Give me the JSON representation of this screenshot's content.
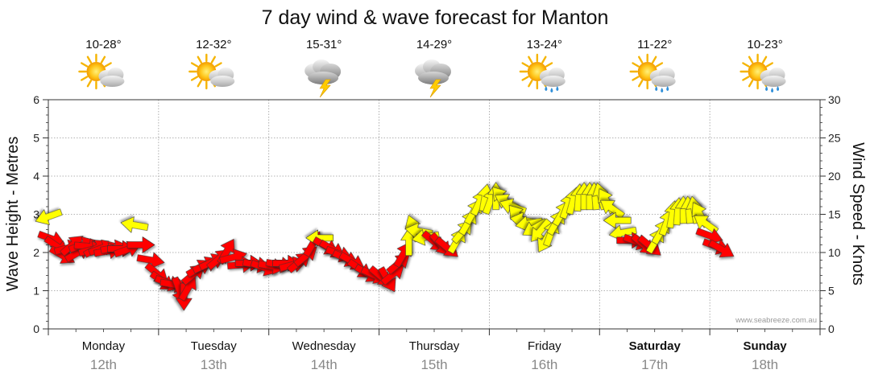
{
  "chart_data": {
    "type": "line",
    "title": "7 day wind & wave forecast for Manton",
    "y_left_label": "Wave Height - Metres",
    "y_right_label": "Wind Speed - Knots",
    "y_left_range": [
      0,
      6
    ],
    "y_right_range": [
      0,
      30
    ],
    "y_left_ticks": [
      "0",
      "1",
      "2",
      "3",
      "4",
      "5",
      "6"
    ],
    "y_right_ticks": [
      "0",
      "5",
      "10",
      "15",
      "20",
      "25",
      "30"
    ],
    "watermark": "www.seabreeze.com.au",
    "grid": true,
    "days": [
      {
        "name": "Monday",
        "date": "12th",
        "temp": "10-28°",
        "icon": "sun-cloud-icon",
        "bold": false
      },
      {
        "name": "Tuesday",
        "date": "13th",
        "temp": "12-32°",
        "icon": "sun-cloud-icon",
        "bold": false
      },
      {
        "name": "Wednesday",
        "date": "14th",
        "temp": "15-31°",
        "icon": "storm-cloud-icon",
        "bold": false
      },
      {
        "name": "Thursday",
        "date": "15th",
        "temp": "14-29°",
        "icon": "storm-cloud-icon",
        "bold": false
      },
      {
        "name": "Friday",
        "date": "16th",
        "temp": "13-24°",
        "icon": "sun-rain-icon",
        "bold": false
      },
      {
        "name": "Saturday",
        "date": "17th",
        "temp": "11-22°",
        "icon": "sun-rain-icon",
        "bold": true
      },
      {
        "name": "Sunday",
        "date": "18th",
        "temp": "10-23°",
        "icon": "sun-rain-icon",
        "bold": true
      }
    ],
    "series": [
      {
        "type": "wind-arrows",
        "unit": "knots",
        "points": [
          {
            "t": 0.0,
            "v": 14.7,
            "c": "#ffff00",
            "d": 160
          },
          {
            "t": 0.03,
            "v": 11.8,
            "c": "#ff0000",
            "d": 20
          },
          {
            "t": 0.08,
            "v": 10.8,
            "c": "#ff0000",
            "d": 35
          },
          {
            "t": 0.13,
            "v": 9.6,
            "c": "#ff0000",
            "d": 30
          },
          {
            "t": 0.18,
            "v": 10.6,
            "c": "#ff0000",
            "d": 345
          },
          {
            "t": 0.22,
            "v": 11.0,
            "c": "#ff0000",
            "d": 320
          },
          {
            "t": 0.27,
            "v": 10.0,
            "c": "#ff0000",
            "d": 330
          },
          {
            "t": 0.31,
            "v": 11.0,
            "c": "#ff0000",
            "d": 340
          },
          {
            "t": 0.36,
            "v": 10.8,
            "c": "#ff0000",
            "d": 5
          },
          {
            "t": 0.4,
            "v": 10.4,
            "c": "#ff0000",
            "d": 345
          },
          {
            "t": 0.44,
            "v": 10.6,
            "c": "#ff0000",
            "d": 330
          },
          {
            "t": 0.49,
            "v": 10.6,
            "c": "#ff0000",
            "d": 340
          },
          {
            "t": 0.54,
            "v": 10.2,
            "c": "#ff0000",
            "d": 350
          },
          {
            "t": 0.6,
            "v": 10.6,
            "c": "#ff0000",
            "d": 350
          },
          {
            "t": 0.66,
            "v": 10.5,
            "c": "#ff0000",
            "d": 0
          },
          {
            "t": 0.72,
            "v": 10.4,
            "c": "#ff0000",
            "d": 340
          },
          {
            "t": 0.78,
            "v": 13.6,
            "c": "#ffff00",
            "d": 190
          },
          {
            "t": 0.84,
            "v": 11.0,
            "c": "#ff0000",
            "d": 0
          },
          {
            "t": 0.93,
            "v": 9.0,
            "c": "#ff0000",
            "d": 10
          },
          {
            "t": 0.99,
            "v": 7.2,
            "c": "#ff0000",
            "d": 40
          },
          {
            "t": 1.04,
            "v": 6.2,
            "c": "#ff0000",
            "d": 35
          },
          {
            "t": 1.09,
            "v": 6.0,
            "c": "#ff0000",
            "d": 20
          },
          {
            "t": 1.14,
            "v": 5.8,
            "c": "#ff0000",
            "d": 10
          },
          {
            "t": 1.19,
            "v": 5.0,
            "c": "#ff0000",
            "d": 70
          },
          {
            "t": 1.23,
            "v": 4.2,
            "c": "#ff0000",
            "d": 90
          },
          {
            "t": 1.27,
            "v": 5.4,
            "c": "#ff0000",
            "d": 300
          },
          {
            "t": 1.32,
            "v": 7.2,
            "c": "#ff0000",
            "d": 320
          },
          {
            "t": 1.37,
            "v": 8.0,
            "c": "#ff0000",
            "d": 330
          },
          {
            "t": 1.43,
            "v": 8.4,
            "c": "#ff0000",
            "d": 335
          },
          {
            "t": 1.49,
            "v": 8.8,
            "c": "#ff0000",
            "d": 335
          },
          {
            "t": 1.55,
            "v": 9.2,
            "c": "#ff0000",
            "d": 320
          },
          {
            "t": 1.62,
            "v": 10.2,
            "c": "#ff0000",
            "d": 300
          },
          {
            "t": 1.68,
            "v": 9.4,
            "c": "#ff0000",
            "d": 345
          },
          {
            "t": 1.75,
            "v": 8.4,
            "c": "#ff0000",
            "d": 355
          },
          {
            "t": 1.82,
            "v": 8.6,
            "c": "#ff0000",
            "d": 0
          },
          {
            "t": 1.89,
            "v": 8.4,
            "c": "#ff0000",
            "d": 10
          },
          {
            "t": 1.96,
            "v": 8.0,
            "c": "#ff0000",
            "d": 20
          },
          {
            "t": 2.03,
            "v": 8.2,
            "c": "#ff0000",
            "d": 10
          },
          {
            "t": 2.1,
            "v": 8.4,
            "c": "#ff0000",
            "d": 10
          },
          {
            "t": 2.16,
            "v": 8.6,
            "c": "#ff0000",
            "d": 0
          },
          {
            "t": 2.22,
            "v": 8.4,
            "c": "#ff0000",
            "d": 345
          },
          {
            "t": 2.28,
            "v": 8.8,
            "c": "#ff0000",
            "d": 320
          },
          {
            "t": 2.34,
            "v": 9.6,
            "c": "#ff0000",
            "d": 320
          },
          {
            "t": 2.4,
            "v": 11.2,
            "c": "#ff0000",
            "d": 300
          },
          {
            "t": 2.46,
            "v": 11.9,
            "c": "#ffff00",
            "d": 180
          },
          {
            "t": 2.52,
            "v": 10.8,
            "c": "#ff0000",
            "d": 30
          },
          {
            "t": 2.58,
            "v": 10.4,
            "c": "#ff0000",
            "d": 30
          },
          {
            "t": 2.64,
            "v": 9.8,
            "c": "#ff0000",
            "d": 20
          },
          {
            "t": 2.7,
            "v": 9.2,
            "c": "#ff0000",
            "d": 25
          },
          {
            "t": 2.76,
            "v": 8.8,
            "c": "#ff0000",
            "d": 30
          },
          {
            "t": 2.83,
            "v": 7.8,
            "c": "#ff0000",
            "d": 35
          },
          {
            "t": 2.9,
            "v": 7.2,
            "c": "#ff0000",
            "d": 30
          },
          {
            "t": 2.96,
            "v": 7.0,
            "c": "#ff0000",
            "d": 25
          },
          {
            "t": 3.02,
            "v": 6.8,
            "c": "#ff0000",
            "d": 40
          },
          {
            "t": 3.08,
            "v": 6.4,
            "c": "#ff0000",
            "d": 60
          },
          {
            "t": 3.13,
            "v": 7.2,
            "c": "#ff0000",
            "d": 320
          },
          {
            "t": 3.18,
            "v": 8.6,
            "c": "#ff0000",
            "d": 320
          },
          {
            "t": 3.22,
            "v": 9.8,
            "c": "#ff0000",
            "d": 300
          },
          {
            "t": 3.27,
            "v": 11.4,
            "c": "#ffff00",
            "d": 270
          },
          {
            "t": 3.31,
            "v": 13.2,
            "c": "#ffff00",
            "d": 250
          },
          {
            "t": 3.36,
            "v": 12.8,
            "c": "#ffff00",
            "d": 190
          },
          {
            "t": 3.42,
            "v": 12.0,
            "c": "#ffff00",
            "d": 170
          },
          {
            "t": 3.5,
            "v": 11.4,
            "c": "#ff0000",
            "d": 40
          },
          {
            "t": 3.56,
            "v": 11.0,
            "c": "#ff0000",
            "d": 50
          },
          {
            "t": 3.62,
            "v": 10.6,
            "c": "#ff0000",
            "d": 40
          },
          {
            "t": 3.71,
            "v": 11.6,
            "c": "#ffff00",
            "d": 300
          },
          {
            "t": 3.76,
            "v": 12.8,
            "c": "#ffff00",
            "d": 310
          },
          {
            "t": 3.81,
            "v": 14.0,
            "c": "#ffff00",
            "d": 300
          },
          {
            "t": 3.86,
            "v": 15.4,
            "c": "#ffff00",
            "d": 300
          },
          {
            "t": 3.91,
            "v": 16.6,
            "c": "#ffff00",
            "d": 295
          },
          {
            "t": 3.96,
            "v": 17.2,
            "c": "#ffff00",
            "d": 280
          },
          {
            "t": 4.01,
            "v": 16.8,
            "c": "#ffff00",
            "d": 290
          },
          {
            "t": 4.06,
            "v": 17.4,
            "c": "#ffff00",
            "d": 270
          },
          {
            "t": 4.11,
            "v": 17.2,
            "c": "#ffff00",
            "d": 230
          },
          {
            "t": 4.16,
            "v": 16.6,
            "c": "#ffff00",
            "d": 210
          },
          {
            "t": 4.21,
            "v": 16.0,
            "c": "#ffff00",
            "d": 200
          },
          {
            "t": 4.26,
            "v": 14.8,
            "c": "#ffff00",
            "d": 230
          },
          {
            "t": 4.31,
            "v": 14.2,
            "c": "#ffff00",
            "d": 190
          },
          {
            "t": 4.36,
            "v": 13.8,
            "c": "#ffff00",
            "d": 170
          },
          {
            "t": 4.41,
            "v": 13.2,
            "c": "#ffff00",
            "d": 150
          },
          {
            "t": 4.46,
            "v": 12.8,
            "c": "#ffff00",
            "d": 130
          },
          {
            "t": 4.51,
            "v": 11.6,
            "c": "#ffff00",
            "d": 120
          },
          {
            "t": 4.56,
            "v": 12.6,
            "c": "#ffff00",
            "d": 290
          },
          {
            "t": 4.61,
            "v": 14.0,
            "c": "#ffff00",
            "d": 300
          },
          {
            "t": 4.66,
            "v": 15.2,
            "c": "#ffff00",
            "d": 300
          },
          {
            "t": 4.71,
            "v": 16.2,
            "c": "#ffff00",
            "d": 290
          },
          {
            "t": 4.76,
            "v": 16.8,
            "c": "#ffff00",
            "d": 285
          },
          {
            "t": 4.81,
            "v": 17.2,
            "c": "#ffff00",
            "d": 275
          },
          {
            "t": 4.86,
            "v": 17.4,
            "c": "#ffff00",
            "d": 270
          },
          {
            "t": 4.91,
            "v": 17.4,
            "c": "#ffff00",
            "d": 270
          },
          {
            "t": 4.96,
            "v": 17.4,
            "c": "#ffff00",
            "d": 265
          },
          {
            "t": 5.01,
            "v": 17.4,
            "c": "#ffff00",
            "d": 255
          },
          {
            "t": 5.06,
            "v": 16.8,
            "c": "#ffff00",
            "d": 240
          },
          {
            "t": 5.11,
            "v": 15.8,
            "c": "#ffff00",
            "d": 215
          },
          {
            "t": 5.16,
            "v": 14.2,
            "c": "#ffff00",
            "d": 180
          },
          {
            "t": 5.21,
            "v": 12.6,
            "c": "#ffff00",
            "d": 170
          },
          {
            "t": 5.28,
            "v": 11.6,
            "c": "#ff0000",
            "d": 0
          },
          {
            "t": 5.34,
            "v": 11.4,
            "c": "#ff0000",
            "d": 20
          },
          {
            "t": 5.4,
            "v": 11.0,
            "c": "#ff0000",
            "d": 40
          },
          {
            "t": 5.46,
            "v": 10.8,
            "c": "#ff0000",
            "d": 40
          },
          {
            "t": 5.51,
            "v": 11.6,
            "c": "#ffff00",
            "d": 300
          },
          {
            "t": 5.56,
            "v": 12.8,
            "c": "#ffff00",
            "d": 300
          },
          {
            "t": 5.61,
            "v": 14.0,
            "c": "#ffff00",
            "d": 290
          },
          {
            "t": 5.66,
            "v": 15.0,
            "c": "#ffff00",
            "d": 280
          },
          {
            "t": 5.71,
            "v": 15.4,
            "c": "#ffff00",
            "d": 275
          },
          {
            "t": 5.76,
            "v": 15.6,
            "c": "#ffff00",
            "d": 270
          },
          {
            "t": 5.81,
            "v": 15.6,
            "c": "#ffff00",
            "d": 265
          },
          {
            "t": 5.86,
            "v": 15.6,
            "c": "#ffff00",
            "d": 260
          },
          {
            "t": 5.91,
            "v": 15.0,
            "c": "#ffff00",
            "d": 240
          },
          {
            "t": 5.96,
            "v": 13.8,
            "c": "#ffff00",
            "d": 215
          },
          {
            "t": 6.0,
            "v": 12.2,
            "c": "#ff0000",
            "d": 20
          },
          {
            "t": 6.06,
            "v": 10.8,
            "c": "#ff0000",
            "d": 20
          },
          {
            "t": 6.11,
            "v": 10.4,
            "c": "#ff0000",
            "d": 30
          }
        ]
      }
    ]
  }
}
